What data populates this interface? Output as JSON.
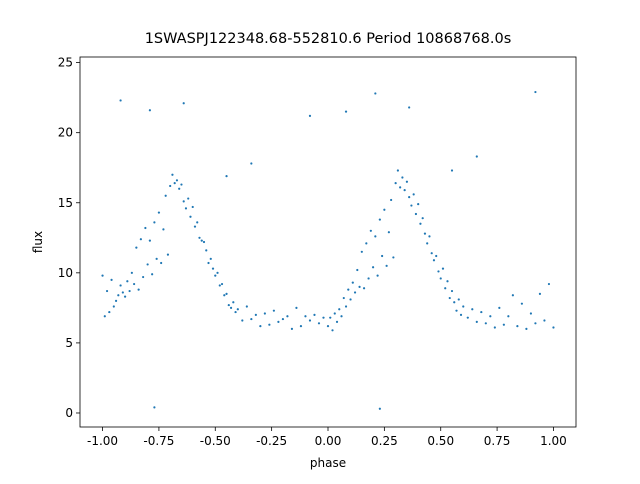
{
  "chart_data": {
    "type": "scatter",
    "title": "1SWASPJ122348.68-552810.6 Period 10868768.0s",
    "xlabel": "phase",
    "ylabel": "flux",
    "color": "#1f77b4",
    "xlim": [
      -1.1,
      1.1
    ],
    "ylim": [
      -1.0,
      25.4
    ],
    "xticks": [
      {
        "value": -1,
        "label": "-1.00"
      },
      {
        "value": -0.75,
        "label": "-0.75"
      },
      {
        "value": -0.5,
        "label": "-0.50"
      },
      {
        "value": -0.25,
        "label": "-0.25"
      },
      {
        "value": 0,
        "label": "0.00"
      },
      {
        "value": 0.25,
        "label": "0.25"
      },
      {
        "value": 0.5,
        "label": "0.50"
      },
      {
        "value": 0.75,
        "label": "0.75"
      },
      {
        "value": 1,
        "label": "1.00"
      }
    ],
    "yticks": [
      0,
      5,
      10,
      15,
      20,
      25
    ],
    "x": [
      0,
      0.01,
      0.02,
      0.03,
      0.04,
      0.05,
      0.06,
      0.07,
      0.08,
      0.09,
      0.1,
      0.11,
      0.12,
      0.13,
      0.14,
      0.15,
      0.16,
      0.17,
      0.18,
      0.19,
      0.2,
      0.21,
      0.22,
      0.23,
      0.24,
      0.25,
      0.26,
      0.27,
      0.28,
      0.29,
      0.3,
      0.31,
      0.32,
      0.33,
      0.34,
      0.35,
      0.36,
      0.37,
      0.38,
      0.39,
      0.4,
      0.41,
      0.42,
      0.43,
      0.44,
      0.45,
      0.46,
      0.47,
      0.48,
      0.49,
      0.5,
      0.51,
      0.52,
      0.53,
      0.54,
      0.55,
      0.56,
      0.57,
      0.58,
      0.59,
      0.6,
      0.62,
      0.64,
      0.66,
      0.68,
      0.7,
      0.72,
      0.74,
      0.76,
      0.78,
      0.8,
      0.82,
      0.84,
      0.86,
      0.88,
      0.9,
      0.92,
      0.94,
      0.96,
      0.98,
      1,
      0.08,
      0.21,
      0.36,
      0.66,
      0.92,
      0.23,
      0.55,
      -1,
      -0.99,
      -0.98,
      -0.97,
      -0.96,
      -0.95,
      -0.94,
      -0.93,
      -0.92,
      -0.91,
      -0.9,
      -0.89,
      -0.88,
      -0.87,
      -0.86,
      -0.85,
      -0.84,
      -0.83,
      -0.82,
      -0.81,
      -0.8,
      -0.79,
      -0.78,
      -0.77,
      -0.76,
      -0.75,
      -0.74,
      -0.73,
      -0.72,
      -0.71,
      -0.7,
      -0.69,
      -0.68,
      -0.67,
      -0.66,
      -0.65,
      -0.64,
      -0.63,
      -0.62,
      -0.61,
      -0.6,
      -0.59,
      -0.58,
      -0.57,
      -0.56,
      -0.55,
      -0.54,
      -0.53,
      -0.52,
      -0.51,
      -0.5,
      -0.49,
      -0.48,
      -0.47,
      -0.46,
      -0.45,
      -0.44,
      -0.43,
      -0.42,
      -0.41,
      -0.4,
      -0.38,
      -0.36,
      -0.34,
      -0.32,
      -0.3,
      -0.28,
      -0.26,
      -0.24,
      -0.22,
      -0.2,
      -0.18,
      -0.16,
      -0.14,
      -0.12,
      -0.1,
      -0.08,
      -0.06,
      -0.04,
      -0.02,
      -0.92,
      -0.79,
      -0.64,
      -0.34,
      -0.08,
      -0.77,
      -0.45
    ],
    "values": [
      6.2,
      6.8,
      5.9,
      7.1,
      6.5,
      7.4,
      6.9,
      8.2,
      7.6,
      8.8,
      8.1,
      9.3,
      8.6,
      10.2,
      9.0,
      11.5,
      8.9,
      12.1,
      9.6,
      13.0,
      10.4,
      12.6,
      9.8,
      13.8,
      11.2,
      14.5,
      10.5,
      12.9,
      15.2,
      11.1,
      16.4,
      17.3,
      16.1,
      16.8,
      15.9,
      16.5,
      15.4,
      14.8,
      15.6,
      14.2,
      14.9,
      13.5,
      13.9,
      12.8,
      12.1,
      12.6,
      11.4,
      10.9,
      11.2,
      10.1,
      9.6,
      10.3,
      8.9,
      9.4,
      8.2,
      8.7,
      7.9,
      7.3,
      8.1,
      7.0,
      7.6,
      6.8,
      7.4,
      6.5,
      7.2,
      6.4,
      6.9,
      6.1,
      7.5,
      6.3,
      6.9,
      8.4,
      6.2,
      7.8,
      6.0,
      7.1,
      6.4,
      8.5,
      6.6,
      9.2,
      6.1,
      21.5,
      22.8,
      21.8,
      18.3,
      22.9,
      0.3,
      17.3,
      9.8,
      6.9,
      8.7,
      7.2,
      9.5,
      7.6,
      8.0,
      8.4,
      9.1,
      8.6,
      8.3,
      9.4,
      8.7,
      10.0,
      9.2,
      11.8,
      8.8,
      12.4,
      9.7,
      13.2,
      10.6,
      12.3,
      9.9,
      13.6,
      11.0,
      14.3,
      10.7,
      13.1,
      15.5,
      11.3,
      16.2,
      17.0,
      16.4,
      16.6,
      16.0,
      16.3,
      15.1,
      14.6,
      15.3,
      14.0,
      14.7,
      13.3,
      13.6,
      12.5,
      12.3,
      12.2,
      11.6,
      10.7,
      11.0,
      10.3,
      9.8,
      10.0,
      9.1,
      9.2,
      8.4,
      8.5,
      7.7,
      7.5,
      7.9,
      7.2,
      7.4,
      6.6,
      7.6,
      6.7,
      7.0,
      6.2,
      7.1,
      6.3,
      7.3,
      6.5,
      6.7,
      6.9,
      6.0,
      7.5,
      6.2,
      6.9,
      6.6,
      7.0,
      6.4,
      6.8,
      22.3,
      21.6,
      22.1,
      17.8,
      21.2,
      0.4,
      16.9
    ]
  }
}
